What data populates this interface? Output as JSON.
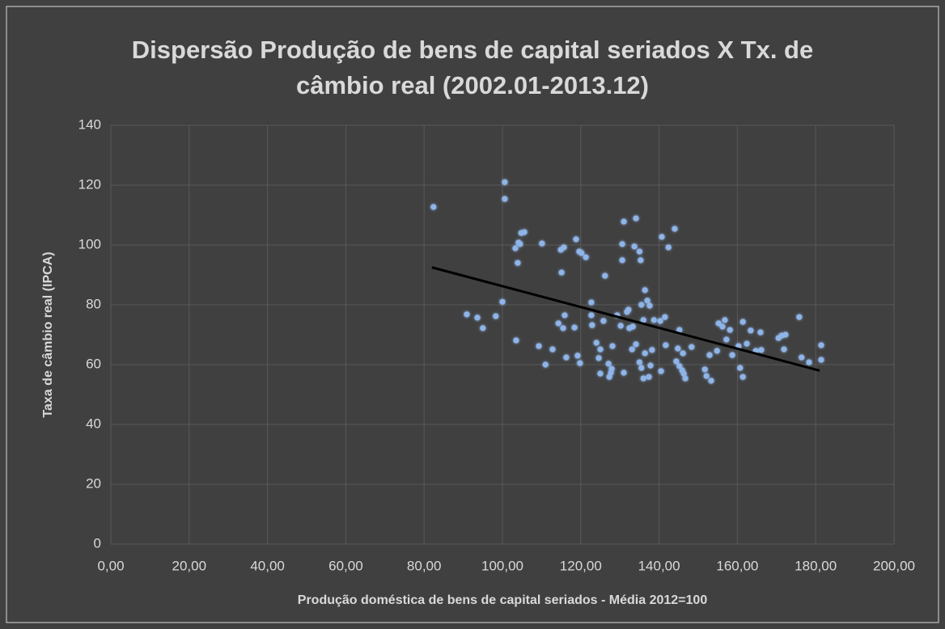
{
  "chart_data": {
    "type": "scatter",
    "title": "Dispersão Produção de bens de capital seriados X Tx. de câmbio real (2002.01-2013.12)",
    "x_label": "Produção doméstica de bens de capital seriados - Média 2012=100",
    "y_label": "Taxa de câmbio real (IPCA)",
    "xlim": [
      0,
      200
    ],
    "ylim": [
      0,
      140
    ],
    "xticks": [
      {
        "value": 0,
        "label": "0,00"
      },
      {
        "value": 20,
        "label": "20,00"
      },
      {
        "value": 40,
        "label": "40,00"
      },
      {
        "value": 60,
        "label": "60,00"
      },
      {
        "value": 80,
        "label": "80,00"
      },
      {
        "value": 100,
        "label": "100,00"
      },
      {
        "value": 120,
        "label": "120,00"
      },
      {
        "value": 140,
        "label": "140,00"
      },
      {
        "value": 160,
        "label": "160,00"
      },
      {
        "value": 180,
        "label": "180,00"
      },
      {
        "value": 200,
        "label": "200,00"
      }
    ],
    "yticks": [
      0,
      20,
      40,
      60,
      80,
      100,
      120,
      140
    ],
    "grid": true,
    "color": "#8fb4e8",
    "x": [
      82.4,
      90.9,
      93.6,
      95.0,
      98.3,
      100,
      100.6,
      100.6,
      103.3,
      103.9,
      104.1,
      104.8,
      105.6,
      104.5,
      103.5,
      109.3,
      111,
      110.1,
      112.8,
      114.3,
      114.9,
      115.1,
      115.7,
      115.9,
      115.5,
      116.3,
      118.4,
      118.8,
      119.6,
      120.2,
      121.3,
      119.2,
      119.8,
      122.7,
      122.7,
      122.9,
      124,
      124.6,
      125,
      125,
      126.2,
      125.8,
      127.1,
      127.3,
      127.7,
      127.9,
      128.1,
      129.3,
      130.2,
      130.6,
      130.6,
      131,
      131,
      131.8,
      132.2,
      132.4,
      133.3,
      133.1,
      134.1,
      134.1,
      133.7,
      135,
      135.3,
      135.5,
      136,
      136.4,
      137,
      137.6,
      135,
      135.5,
      136.4,
      136,
      137.4,
      137.8,
      138.2,
      138.7,
      140.3,
      140.7,
      141.5,
      141.7,
      140.5,
      142.4,
      144.0,
      145.2,
      144.8,
      144.4,
      145.2,
      145.9,
      146.3,
      146.7,
      146.1,
      148.3,
      151.7,
      152.1,
      152.9,
      153.3,
      154.8,
      155.2,
      156.2,
      156.8,
      157.2,
      158.1,
      158.7,
      160.3,
      160.7,
      161.4,
      161.4,
      162.4,
      163.4,
      164.7,
      165.9,
      166.1,
      170.5,
      171.3,
      171.9,
      172.3,
      175.8,
      176.4,
      178.3,
      181.4,
      181.4
    ],
    "values": [
      112.7,
      76.8,
      75.7,
      72.2,
      76.2,
      81,
      121,
      115.4,
      98.9,
      94,
      100.8,
      104,
      104.3,
      100.3,
      68.1,
      66.2,
      60,
      100.5,
      65.1,
      73.8,
      98.4,
      90.8,
      99.2,
      76.5,
      72.2,
      62.4,
      72.4,
      101.9,
      97.8,
      97.3,
      95.9,
      63,
      60.5,
      80.8,
      76.5,
      73.2,
      67.3,
      62.2,
      65.1,
      57,
      89.7,
      74.6,
      60.3,
      55.9,
      57.3,
      58.6,
      66.2,
      76.5,
      73,
      100.3,
      94.9,
      107.8,
      57.3,
      77.6,
      78.4,
      72.2,
      72.7,
      65.1,
      66.8,
      108.9,
      99.5,
      97.8,
      94.9,
      80,
      74.9,
      84.9,
      81.4,
      79.7,
      60.8,
      58.9,
      63.8,
      55.4,
      55.9,
      59.7,
      64.9,
      74.9,
      74.6,
      102.7,
      75.9,
      66.5,
      57.8,
      99.2,
      105.4,
      71.6,
      65.4,
      61.1,
      59.5,
      58.1,
      57,
      55.4,
      63.8,
      65.9,
      58.4,
      56.2,
      63.2,
      54.6,
      64.6,
      73.8,
      72.7,
      74.9,
      68.4,
      71.6,
      63.2,
      66.2,
      58.9,
      55.9,
      74.3,
      67,
      71.4,
      64.6,
      70.8,
      64.9,
      68.9,
      69.7,
      65.1,
      70,
      75.9,
      62.4,
      60.8,
      66.5,
      61.6
    ],
    "trendline": {
      "color": "#000000",
      "x": [
        82,
        181
      ],
      "values": [
        92.5,
        58
      ]
    }
  }
}
